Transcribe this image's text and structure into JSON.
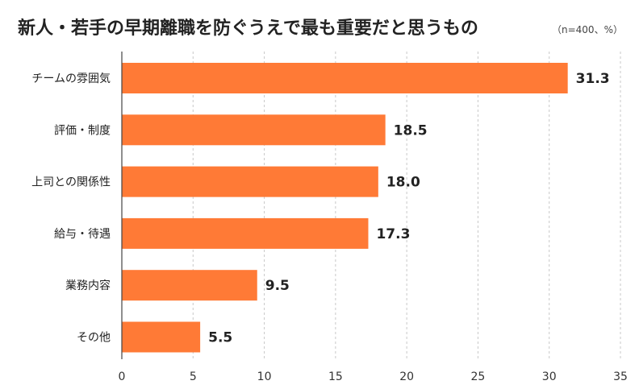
{
  "chart_data": {
    "type": "bar",
    "orientation": "horizontal",
    "title": "新人・若手の早期離職を防ぐうえで最も重要だと思うもの",
    "title_note": "（n=400、%）",
    "categories": [
      "チームの雰囲気",
      "評価・制度",
      "上司との関係性",
      "給与・待遇",
      "業務内容",
      "その他"
    ],
    "values": [
      31.3,
      18.5,
      18.0,
      17.3,
      9.5,
      5.5
    ],
    "value_labels": [
      "31.3",
      "18.5",
      "18.0",
      "17.3",
      "9.5",
      "5.5"
    ],
    "xlim": [
      0,
      35
    ],
    "xticks": [
      0,
      5,
      10,
      15,
      20,
      25,
      30,
      35
    ],
    "xlabel": "",
    "ylabel": "",
    "grid": true,
    "bar_color": "#ff7a36"
  }
}
